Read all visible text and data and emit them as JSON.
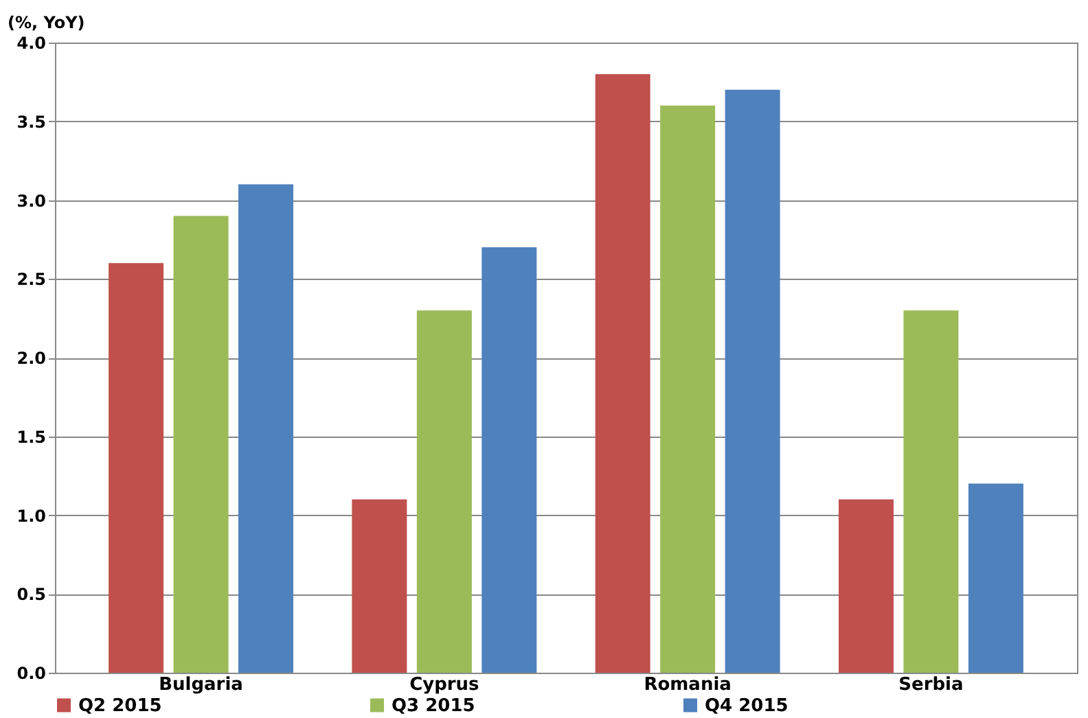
{
  "chart_data": {
    "type": "bar",
    "ylabel": "(%, YoY)",
    "categories": [
      "Bulgaria",
      "Cyprus",
      "Romania",
      "Serbia"
    ],
    "series": [
      {
        "name": "Q2 2015",
        "color": "#c0504d",
        "values": [
          2.6,
          1.1,
          3.8,
          1.1
        ]
      },
      {
        "name": "Q3 2015",
        "color": "#9bbb59",
        "values": [
          2.9,
          2.3,
          3.6,
          2.3
        ]
      },
      {
        "name": "Q4 2015",
        "color": "#4f81bd",
        "values": [
          3.1,
          2.7,
          3.7,
          1.2
        ]
      }
    ],
    "ylim": [
      0,
      4
    ],
    "yticks": [
      {
        "value": 0,
        "label": "0.0"
      },
      0.5,
      {
        "value": 1,
        "label": "1.0"
      },
      1.5,
      {
        "value": 2,
        "label": "2.0"
      },
      2.5,
      {
        "value": 3,
        "label": "3.0"
      },
      3.5,
      {
        "value": 4,
        "label": "4.0"
      }
    ],
    "grid": "y",
    "legend": "bottom"
  }
}
